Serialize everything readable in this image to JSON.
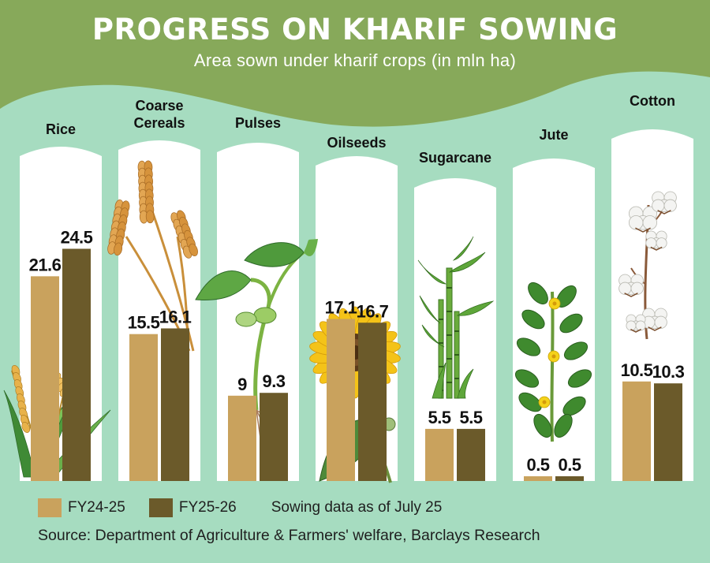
{
  "header": {
    "title": "PROGRESS ON KHARIF SOWING",
    "subtitle": "Area sown under kharif crops (in mln ha)"
  },
  "chart_data": {
    "type": "bar",
    "title": "PROGRESS ON KHARIF SOWING",
    "subtitle": "Area sown under kharif crops (in mln ha)",
    "categories": [
      "Rice",
      "Coarse Cereals",
      "Pulses",
      "Oilseeds",
      "Sugarcane",
      "Jute",
      "Cotton"
    ],
    "series": [
      {
        "name": "FY24-25",
        "values": [
          21.6,
          15.5,
          9,
          17.1,
          5.5,
          0.5,
          10.5
        ],
        "labels": [
          "21.6",
          "15.5",
          "9",
          "17.1",
          "5.5",
          "0.5",
          "10.5"
        ],
        "color": "#c9a25d"
      },
      {
        "name": "FY25-26",
        "values": [
          24.5,
          16.1,
          9.3,
          16.7,
          5.5,
          0.5,
          10.3
        ],
        "labels": [
          "24.5",
          "16.1",
          "9.3",
          "16.7",
          "5.5",
          "0.5",
          "10.3"
        ],
        "color": "#6b5a2a"
      }
    ],
    "ylim": [
      0,
      29
    ],
    "grid": false,
    "legend_position": "bottom-left",
    "xlabel": "",
    "ylabel": ""
  },
  "legend": {
    "items": [
      {
        "label": "FY24-25",
        "color": "#c9a25d"
      },
      {
        "label": "FY25-26",
        "color": "#6b5a2a"
      }
    ],
    "note": "Sowing data as of July 25"
  },
  "footer": {
    "source": "Source: Department of Agriculture & Farmers' welfare, Barclays Research"
  },
  "colors": {
    "header_green": "#87a95a",
    "background_mint": "#a6dcc0",
    "panel_white": "#ffffff",
    "label_text": "#111111",
    "plant_green": "#5a9a3a",
    "grain_gold": "#d9a24a"
  },
  "illustrations": [
    "rice-plant-icon",
    "wheat-icon",
    "pulse-seedling-icon",
    "sunflower-icon",
    "sugarcane-icon",
    "jute-plant-icon",
    "cotton-plant-icon"
  ]
}
